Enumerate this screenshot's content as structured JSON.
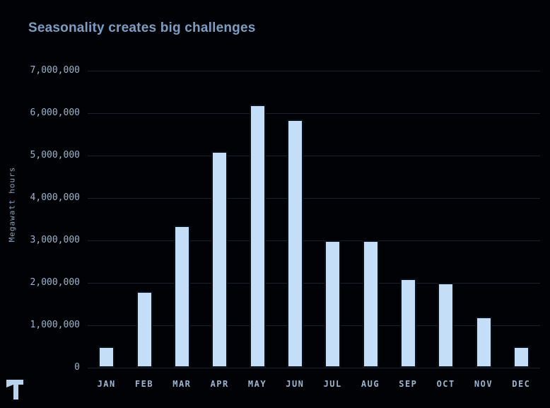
{
  "chart_data": {
    "type": "bar",
    "title": "Seasonality creates big challenges",
    "ylabel": "Megawatt hours",
    "xlabel": "",
    "categories": [
      "JAN",
      "FEB",
      "MAR",
      "APR",
      "MAY",
      "JUN",
      "JUL",
      "AUG",
      "SEP",
      "OCT",
      "NOV",
      "DEC"
    ],
    "values": [
      500000,
      1800000,
      3350000,
      5100000,
      6200000,
      5850000,
      3000000,
      3000000,
      2100000,
      2000000,
      1200000,
      500000
    ],
    "ylim": [
      0,
      7000000
    ],
    "ytick_step": 1000000,
    "ytick_labels": [
      "0",
      "1,000,000",
      "2,000,000",
      "3,000,000",
      "4,000,000",
      "5,000,000",
      "6,000,000",
      "7,000,000"
    ],
    "grid": true,
    "legend_position": "none"
  },
  "branding": {
    "logo": "stylized-t-logo"
  },
  "colors": {
    "background": "#000205",
    "title": "#7e9dc3",
    "tick_label": "#9cb5d0",
    "axis_title": "#8ba6c2",
    "gridline": "#1a212b",
    "bar_fill": "#c3def6",
    "bar_edge": "#0a1017",
    "logo": "#b7d3ee"
  }
}
